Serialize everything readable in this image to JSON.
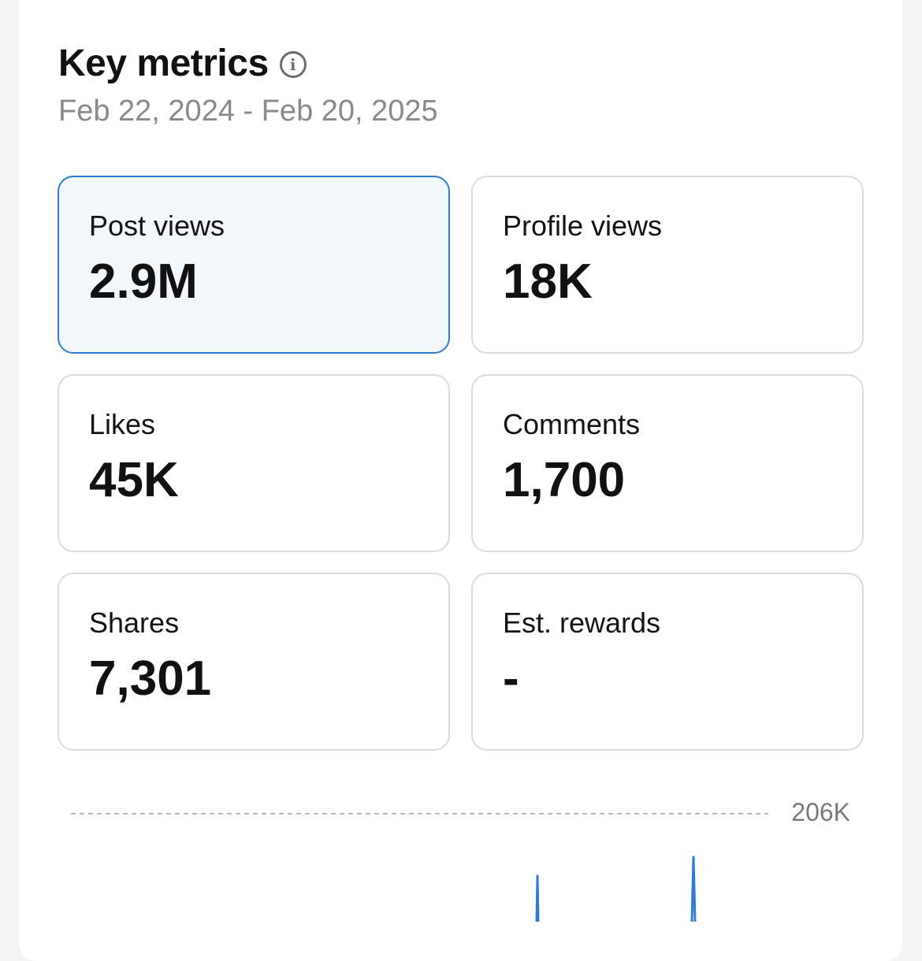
{
  "header": {
    "title": "Key metrics",
    "info_icon": "info-icon",
    "date_range": "Feb 22, 2024 - Feb 20, 2025"
  },
  "metrics": [
    {
      "label": "Post views",
      "value": "2.9M",
      "selected": true
    },
    {
      "label": "Profile views",
      "value": "18K",
      "selected": false
    },
    {
      "label": "Likes",
      "value": "45K",
      "selected": false
    },
    {
      "label": "Comments",
      "value": "1,700",
      "selected": false
    },
    {
      "label": "Shares",
      "value": "7,301",
      "selected": false
    },
    {
      "label": "Est. rewards",
      "value": "-",
      "selected": false
    }
  ],
  "colors": {
    "accent": "#2f7dd1",
    "selected_bg": "#f2f7fb",
    "card_border": "#dcdcdc"
  },
  "chart_data": {
    "type": "line",
    "y_max_label": "206K",
    "ylim": [
      0,
      206000
    ],
    "series_color": "#2f7dd1"
  }
}
